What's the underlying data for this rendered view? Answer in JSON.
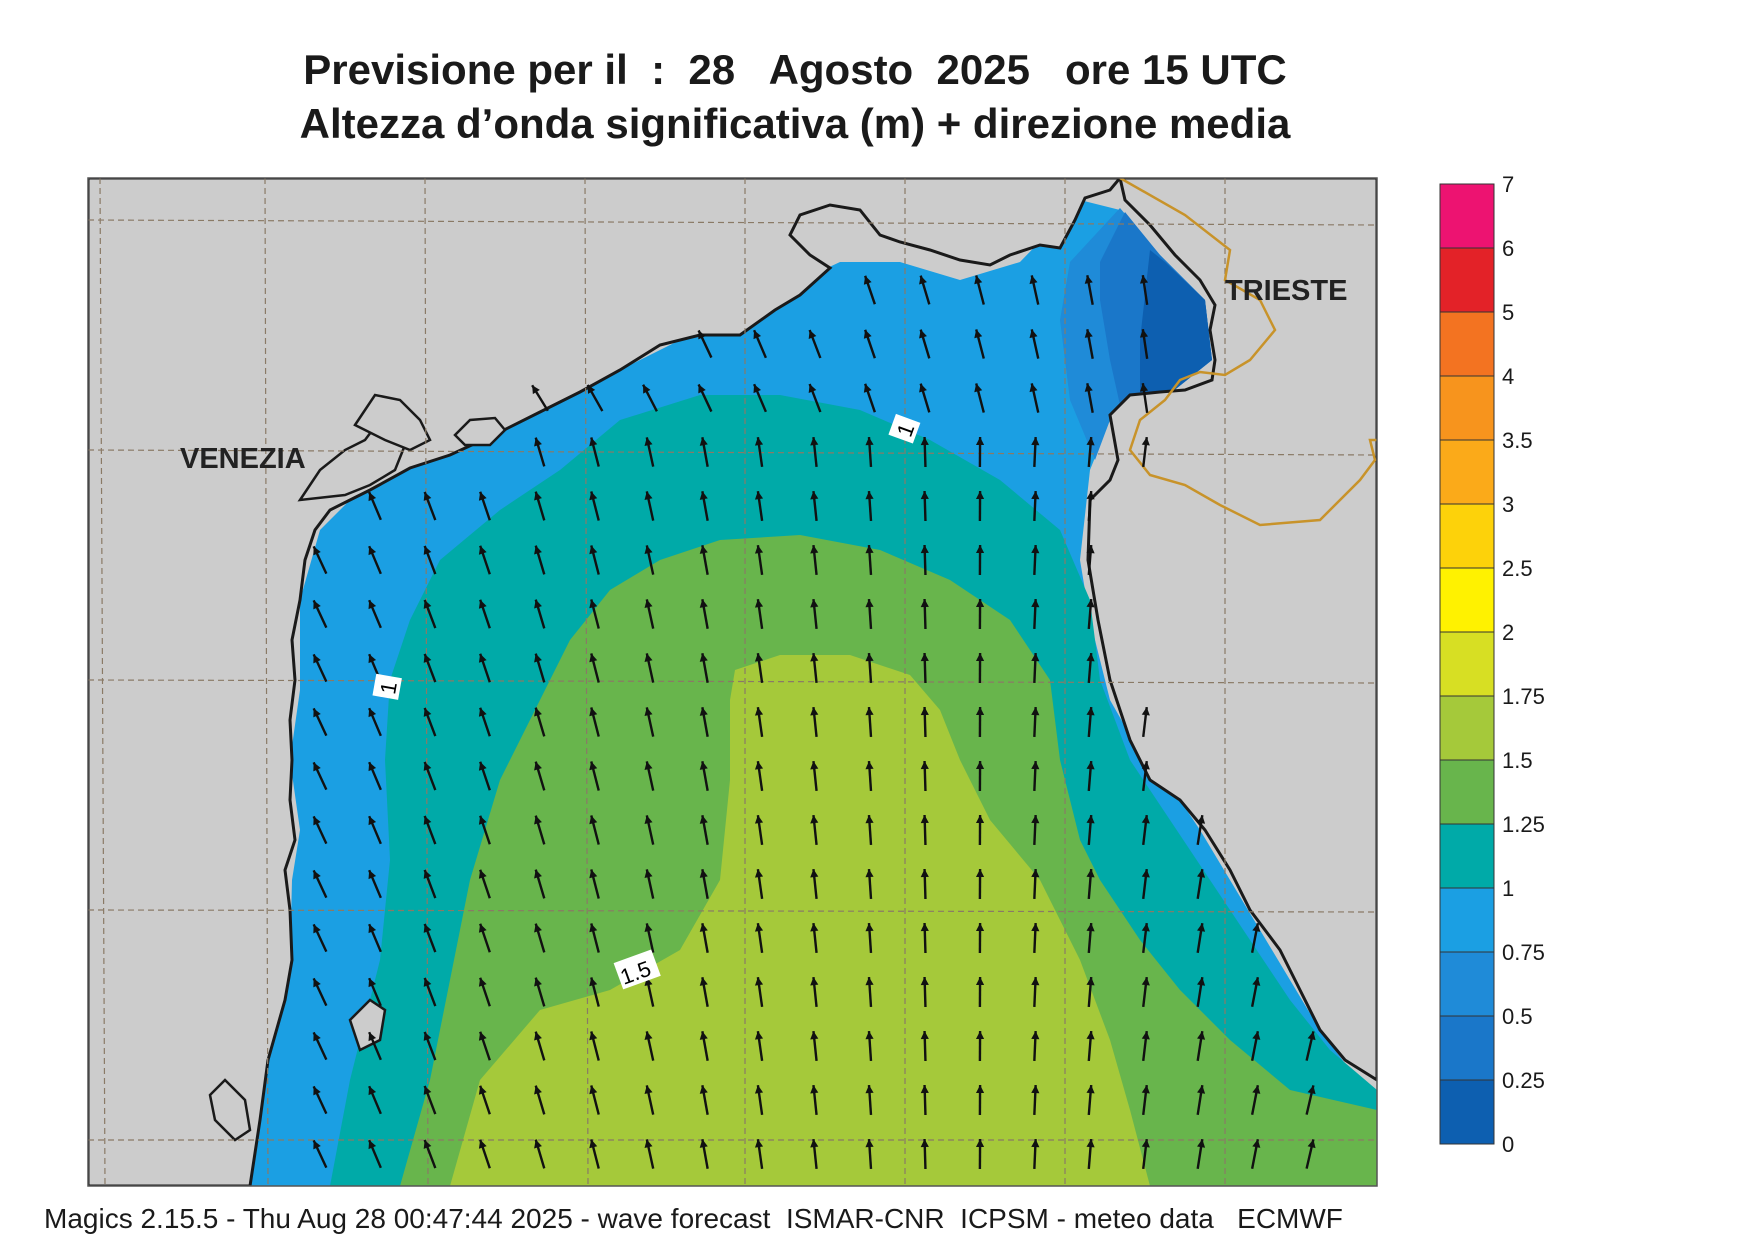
{
  "title": {
    "line1": "Previsione per il  :  28   Agosto  2025   ore 15 UTC",
    "line2": "Altezza d’onda significativa (m) + direzione media"
  },
  "map": {
    "cities": [
      {
        "id": "venezia",
        "name": "VENEZIA"
      },
      {
        "id": "trieste",
        "name": "TRIESTE"
      }
    ],
    "contour_labels": [
      "1",
      "1",
      "1.5"
    ],
    "colors": {
      "land": "#cccccc",
      "band_0_0.25": "#0d5fb0",
      "band_0.25_0.5": "#1a77c9",
      "band_0.5_0.75": "#1f8bd8",
      "band_0.75_1": "#1b9fe3",
      "band_1_1.25": "#00aaa8",
      "band_1.25_1.5": "#68b54c",
      "band_1.5_1.75": "#a5c93a"
    }
  },
  "legend": {
    "labels": [
      "7",
      "6",
      "5",
      "4",
      "3.5",
      "3",
      "2.5",
      "2",
      "1.75",
      "1.5",
      "1.25",
      "1",
      "0.75",
      "0.5",
      "0.25",
      "0"
    ],
    "colors": [
      "#ed1371",
      "#e32228",
      "#f37321",
      "#f7941d",
      "#fbaa19",
      "#fdd20a",
      "#fff200",
      "#d7df23",
      "#a5c93a",
      "#68b54c",
      "#00aaa8",
      "#1b9fe3",
      "#1f8bd8",
      "#1a77c9",
      "#0d5fb0"
    ]
  },
  "footer": {
    "text": "Magics 2.15.5 - Thu Aug 28 00:47:44 2025 - wave forecast  ISMAR-CNR  ICPSM - meteo data   ECMWF"
  }
}
